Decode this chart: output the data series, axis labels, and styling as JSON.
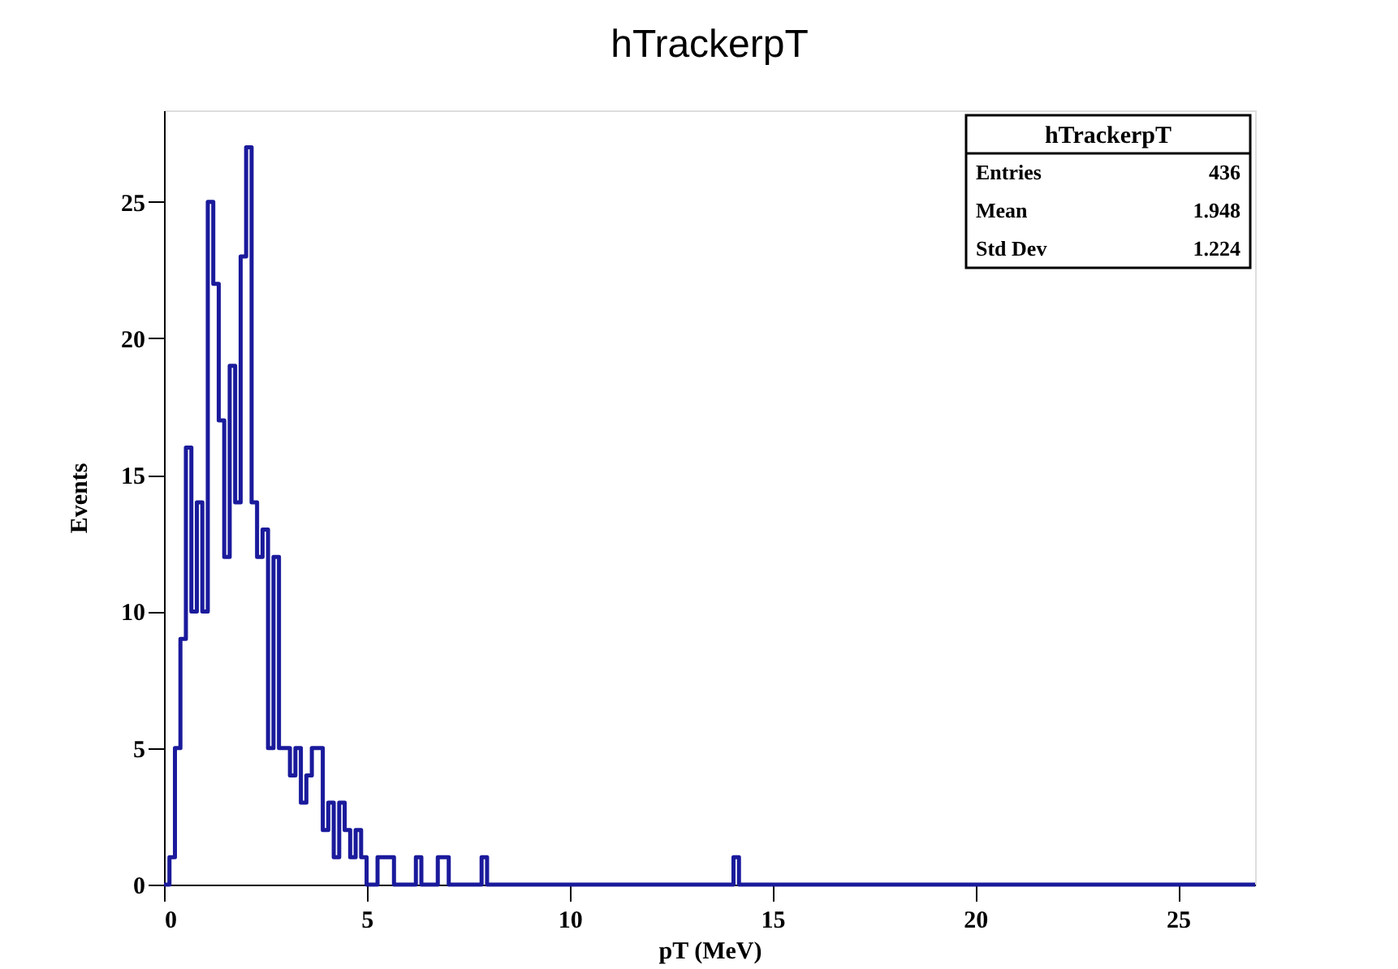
{
  "chart_data": {
    "type": "histogram",
    "title": "hTrackerpT",
    "xlabel": "pT (MeV)",
    "ylabel": "Events",
    "bins": [
      0,
      0.135,
      0.27,
      0.405,
      0.54,
      0.675,
      0.81,
      0.945,
      1.08,
      1.215,
      1.35,
      1.485,
      1.62,
      1.755,
      1.89,
      2.025,
      2.16,
      2.295,
      2.43,
      2.565,
      2.7,
      2.835,
      2.97,
      3.105,
      3.24,
      3.375,
      3.51,
      3.645,
      3.78,
      3.915,
      4.05,
      4.185,
      4.32,
      4.455,
      4.59,
      4.725,
      4.86,
      4.995,
      5.13,
      5.265,
      5.4,
      5.535,
      5.67,
      5.805,
      5.94,
      6.075,
      6.21,
      6.345,
      6.48,
      6.615,
      6.75,
      6.885,
      7.02,
      7.155,
      7.29,
      7.425,
      7.56,
      7.695,
      7.83,
      7.965,
      8.1,
      14.04,
      14.175,
      26.9
    ],
    "values": [
      0,
      1,
      5,
      9,
      16,
      10,
      14,
      10,
      25,
      22,
      17,
      12,
      19,
      14,
      23,
      27,
      14,
      12,
      13,
      5,
      12,
      5,
      5,
      4,
      5,
      3,
      4,
      5,
      5,
      2,
      3,
      1,
      3,
      2,
      1,
      2,
      1,
      0,
      0,
      1,
      1,
      1,
      0,
      0,
      0,
      0,
      1,
      0,
      0,
      0,
      1,
      1,
      0,
      0,
      0,
      0,
      0,
      0,
      1,
      0,
      0,
      1,
      0
    ],
    "color": "#1a1a9c",
    "xlim": [
      0,
      26.9
    ],
    "ylim": [
      0,
      28.35
    ],
    "xticks": [
      0,
      5,
      10,
      15,
      20,
      25
    ],
    "yticks": [
      0,
      5,
      10,
      15,
      20,
      25
    ],
    "grid": false,
    "annotations": [
      "hTrackerpT",
      "Entries",
      "436",
      "Mean",
      "1.948",
      "Std Dev",
      "1.224"
    ]
  }
}
